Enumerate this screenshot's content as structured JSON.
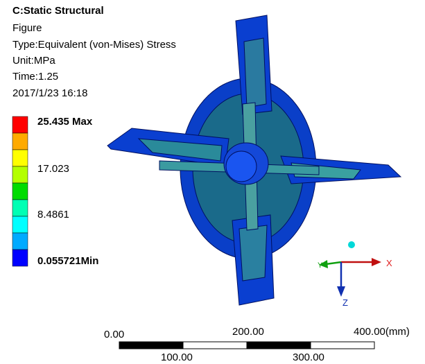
{
  "header": {
    "title": "C:Static Structural",
    "subtitle": "Figure",
    "type": "Type:Equivalent (von-Mises) Stress",
    "unit": "Unit:MPa",
    "time": "Time:1.25",
    "date": "2017/1/23 16:18"
  },
  "legend": {
    "labels": [
      "25.435 Max",
      "17.023",
      "8.4861",
      "0.055721Min"
    ]
  },
  "scale_bar": {
    "top_labels": [
      "0.00",
      "200.00",
      "400.00(mm)"
    ],
    "bottom_labels": [
      "100.00",
      "300.00"
    ]
  },
  "triad": {
    "x": "X",
    "y": "Y",
    "z": "Z"
  }
}
